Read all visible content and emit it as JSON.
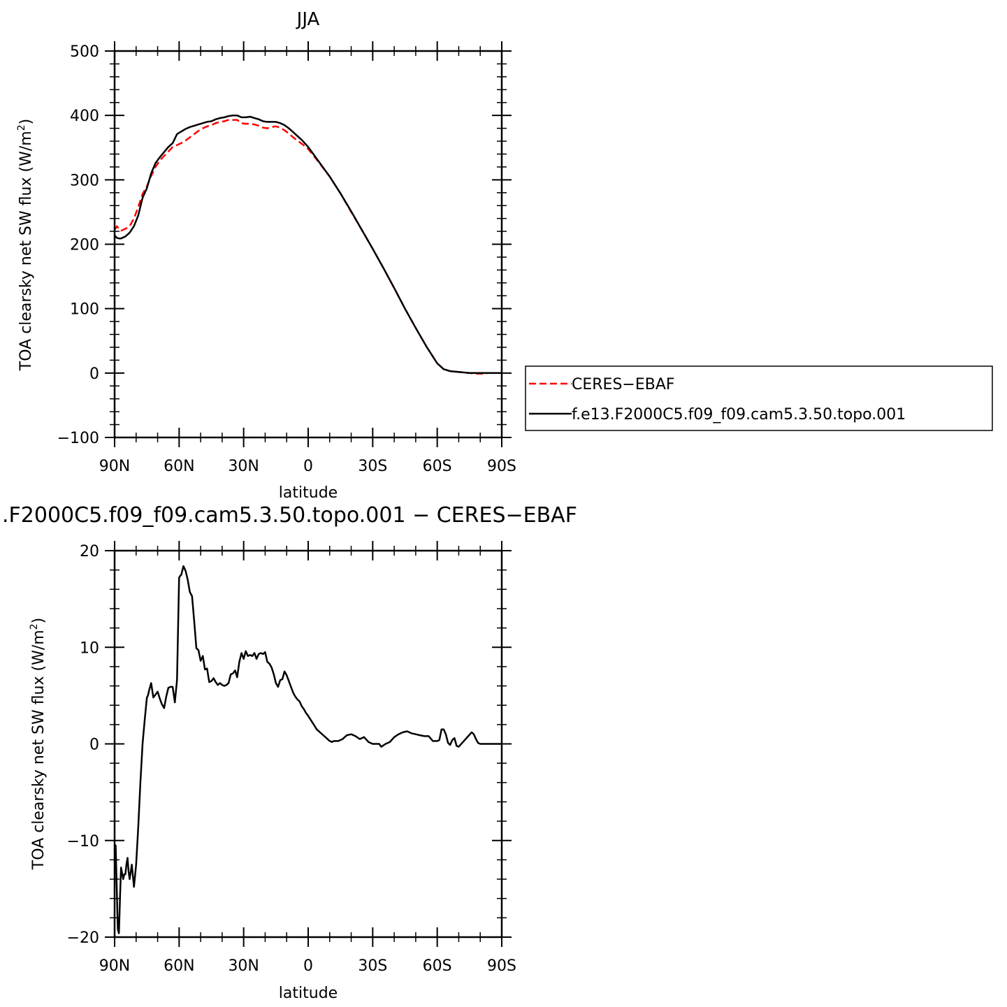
{
  "chart_data": [
    {
      "type": "line",
      "title": "JJA",
      "xlabel": "latitude",
      "ylabel": "TOA clearsky net SW flux (W/m",
      "ylabel_sup": "2",
      "ylabel_tail": ")",
      "xlim": [
        90,
        -90
      ],
      "ylim": [
        -100,
        500
      ],
      "x_ticks": [
        90,
        60,
        30,
        0,
        -30,
        -60,
        -90
      ],
      "x_tick_labels": [
        "90N",
        "60N",
        "30N",
        "0",
        "30S",
        "60S",
        "90S"
      ],
      "y_ticks": [
        -100,
        0,
        100,
        200,
        300,
        400,
        500
      ],
      "y_tick_labels": [
        "−100",
        "0",
        "100",
        "200",
        "300",
        "400",
        "500"
      ],
      "legend": {
        "position": "right",
        "entries": [
          "CERES−EBAF",
          "f.e13.F2000C5.f09_f09.cam5.3.50.topo.001"
        ]
      },
      "series": [
        {
          "name": "CERES−EBAF",
          "color": "#ff0000",
          "dash": "dashed",
          "x": [
            90,
            89,
            88,
            87,
            85,
            83,
            81,
            79,
            77,
            75,
            73,
            71,
            69,
            67,
            65,
            63,
            61,
            59,
            57,
            55,
            53,
            51,
            49,
            47,
            45,
            43,
            41,
            39,
            37,
            35,
            33,
            31,
            29,
            27,
            25,
            23,
            21,
            19,
            17,
            15,
            13,
            11,
            9,
            7,
            5,
            3,
            0,
            -5,
            -10,
            -15,
            -20,
            -25,
            -30,
            -35,
            -40,
            -45,
            -50,
            -55,
            -60,
            -63,
            -66,
            -69,
            -72,
            -75,
            -78,
            -81,
            -84,
            -87,
            -90
          ],
          "y": [
            222,
            228,
            224,
            221,
            224,
            228,
            240,
            258,
            278,
            290,
            306,
            320,
            330,
            337,
            344,
            351,
            354,
            357,
            361,
            366,
            371,
            376,
            380,
            383,
            385,
            388,
            390,
            391,
            393,
            393,
            393,
            388,
            387,
            387,
            386,
            384,
            381,
            380,
            382,
            383,
            381,
            377,
            372,
            366,
            361,
            356,
            348,
            327,
            305,
            279,
            250,
            222,
            193,
            163,
            132,
            100,
            70,
            41,
            15,
            6,
            3,
            2,
            1,
            0,
            -1,
            -1,
            0,
            0,
            0
          ]
        },
        {
          "name": "f.e13.F2000C5.f09_f09.cam5.3.50.topo.001",
          "color": "#000000",
          "dash": "solid",
          "x": [
            90,
            89,
            88,
            87,
            85,
            83,
            81,
            79,
            77,
            75,
            73,
            71,
            69,
            67,
            65,
            63,
            61,
            59,
            57,
            55,
            53,
            51,
            49,
            47,
            45,
            43,
            41,
            39,
            37,
            35,
            33,
            31,
            29,
            27,
            25,
            23,
            21,
            19,
            17,
            15,
            13,
            11,
            9,
            7,
            5,
            3,
            0,
            -5,
            -10,
            -15,
            -20,
            -25,
            -30,
            -35,
            -40,
            -45,
            -50,
            -55,
            -60,
            -63,
            -66,
            -69,
            -72,
            -75,
            -78,
            -81,
            -84,
            -87,
            -90
          ],
          "y": [
            214,
            210,
            209,
            209,
            212,
            218,
            228,
            245,
            272,
            287,
            310,
            326,
            335,
            343,
            351,
            357,
            371,
            375,
            379,
            382,
            384,
            386,
            388,
            390,
            391,
            394,
            396,
            397,
            399,
            400,
            400,
            397,
            397,
            398,
            396,
            394,
            391,
            390,
            390,
            390,
            388,
            385,
            380,
            374,
            368,
            362,
            351,
            328,
            305,
            279,
            251,
            222,
            193,
            163,
            132,
            100,
            70,
            41,
            15,
            6,
            3,
            2,
            1,
            0,
            0,
            0,
            0,
            0,
            0
          ]
        }
      ]
    },
    {
      "type": "line",
      "title": ".F2000C5.f09_f09.cam5.3.50.topo.001 − CERES−EBAF",
      "xlabel": "latitude",
      "ylabel": "TOA clearsky net SW flux (W/m",
      "ylabel_sup": "2",
      "ylabel_tail": ")",
      "xlim": [
        90,
        -90
      ],
      "ylim": [
        -20,
        20
      ],
      "x_ticks": [
        90,
        60,
        30,
        0,
        -30,
        -60,
        -90
      ],
      "x_tick_labels": [
        "90N",
        "60N",
        "30N",
        "0",
        "30S",
        "60S",
        "90S"
      ],
      "y_ticks": [
        -20,
        -10,
        0,
        10,
        20
      ],
      "y_tick_labels": [
        "−20",
        "−10",
        "0",
        "10",
        "20"
      ],
      "series": [
        {
          "color": "#000000",
          "dash": "solid",
          "x": [
            90,
            89.5,
            89,
            88.5,
            88,
            87.5,
            87,
            86,
            85.5,
            85,
            84.5,
            84,
            83.5,
            83,
            82,
            81,
            80,
            79,
            78,
            77,
            76,
            75,
            74.5,
            74,
            73,
            72,
            71,
            70,
            69,
            68,
            67,
            66,
            65,
            64,
            63,
            62,
            61,
            60,
            59.5,
            59,
            58,
            57,
            56,
            55,
            54,
            53,
            52,
            51,
            50,
            49,
            48,
            47,
            46,
            45,
            44,
            43,
            42,
            41,
            40,
            39,
            38,
            37,
            36,
            35,
            34,
            33,
            32,
            31,
            30,
            29,
            28,
            27,
            26,
            25,
            24,
            23,
            22,
            21,
            20,
            19,
            18,
            17,
            16,
            15,
            14,
            13,
            12,
            11,
            10,
            9,
            8,
            7,
            6,
            5,
            4,
            3,
            2,
            1,
            0,
            -2,
            -4,
            -6,
            -8,
            -10,
            -11,
            -12,
            -14,
            -16,
            -18,
            -20,
            -22,
            -24,
            -26,
            -28,
            -30,
            -32,
            -33,
            -34,
            -36,
            -38,
            -40,
            -42,
            -44,
            -46,
            -48,
            -50,
            -52,
            -54,
            -56,
            -58,
            -60,
            -61,
            -62,
            -63,
            -64,
            -65,
            -66,
            -67,
            -68,
            -69,
            -70,
            -72,
            -74,
            -76,
            -77,
            -78,
            -79,
            -80,
            -82,
            -84,
            -86,
            -88,
            -90
          ],
          "y": [
            -11,
            -10.5,
            -15,
            -19.2,
            -19.6,
            -16,
            -12.8,
            -14,
            -13.5,
            -13.5,
            -12.5,
            -11.8,
            -13.2,
            -14,
            -12.5,
            -14.8,
            -12.5,
            -8.5,
            -4,
            0,
            2.5,
            4.8,
            5,
            5.5,
            6.3,
            4.8,
            5.1,
            5.4,
            4.7,
            4.1,
            3.7,
            4.9,
            5.8,
            5.9,
            5.9,
            4.3,
            6.6,
            17.2,
            17.4,
            17.5,
            18.4,
            17.9,
            17,
            15.7,
            15.3,
            12.7,
            9.9,
            9.7,
            8.6,
            9.1,
            7.7,
            7.8,
            6.4,
            6.5,
            6.8,
            6.4,
            6.1,
            6.3,
            6.1,
            6,
            6.1,
            6.3,
            7.2,
            7.3,
            7.6,
            6.9,
            8.5,
            9.4,
            8.8,
            9.6,
            9.1,
            9.2,
            9.1,
            9.4,
            8.8,
            9.3,
            9.4,
            9.3,
            9.5,
            8.5,
            8.3,
            7.9,
            7.2,
            6.3,
            5.9,
            6.6,
            6.7,
            7.5,
            7.1,
            6.5,
            5.9,
            5.3,
            4.9,
            4.6,
            4.4,
            3.9,
            3.6,
            3.2,
            2.9,
            2.2,
            1.5,
            1.1,
            0.7,
            0.3,
            0.2,
            0.3,
            0.3,
            0.5,
            0.9,
            1,
            0.8,
            0.5,
            0.7,
            0.2,
            0,
            0,
            0,
            -0.3,
            0,
            0.2,
            0.7,
            1,
            1.2,
            1.3,
            1.1,
            1,
            0.9,
            0.8,
            0.8,
            0.3,
            0.3,
            0.4,
            1.5,
            1.5,
            1,
            0.1,
            -0.1,
            0.4,
            0.6,
            -0.2,
            -0.3,
            0.2,
            0.7,
            1.2,
            1,
            0.5,
            0.1,
            0,
            0,
            0,
            0,
            0,
            0
          ]
        }
      ]
    }
  ]
}
